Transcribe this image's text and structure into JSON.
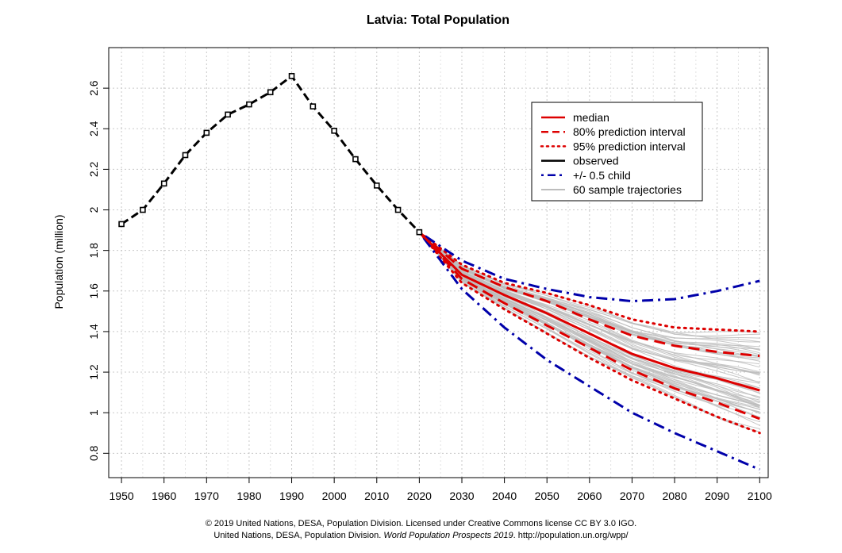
{
  "chart_data": {
    "type": "line",
    "title": "Latvia: Total Population",
    "xlabel": "",
    "ylabel": "Population (million)",
    "xlim": [
      1947,
      2102
    ],
    "ylim": [
      0.68,
      2.8
    ],
    "x_ticks": [
      1950,
      1960,
      1970,
      1980,
      1990,
      2000,
      2010,
      2020,
      2030,
      2040,
      2050,
      2060,
      2070,
      2080,
      2090,
      2100
    ],
    "y_ticks": [
      0.8,
      1.0,
      1.2,
      1.4,
      1.6,
      1.8,
      2.0,
      2.2,
      2.4,
      2.6
    ],
    "y_tick_labels": [
      "0.8",
      "1",
      "1.2",
      "1.4",
      "1.6",
      "1.8",
      "2",
      "2.2",
      "2.4",
      "2.6"
    ],
    "grid": true,
    "legend_position": "top-right",
    "legend": [
      "median",
      "80% prediction interval",
      "95% prediction interval",
      "observed",
      "+/- 0.5 child",
      "60 sample trajectories"
    ],
    "colors": {
      "median": "#dd0000",
      "interval": "#dd0000",
      "observed": "#000000",
      "child": "#0000aa",
      "trajectories": "#bdbdbd",
      "grid": "#c8c8c8"
    },
    "series": [
      {
        "name": "observed",
        "x": [
          1950,
          1955,
          1960,
          1965,
          1970,
          1975,
          1980,
          1985,
          1990,
          1995,
          2000,
          2005,
          2010,
          2015,
          2020
        ],
        "values": [
          1.93,
          2.0,
          2.13,
          2.27,
          2.38,
          2.47,
          2.52,
          2.58,
          2.66,
          2.51,
          2.39,
          2.25,
          2.12,
          2.0,
          1.89
        ]
      },
      {
        "name": "median",
        "x": [
          2020,
          2030,
          2040,
          2050,
          2060,
          2070,
          2080,
          2090,
          2100
        ],
        "values": [
          1.89,
          1.68,
          1.58,
          1.49,
          1.39,
          1.29,
          1.22,
          1.17,
          1.11
        ]
      },
      {
        "name": "80% upper",
        "x": [
          2020,
          2030,
          2040,
          2050,
          2060,
          2070,
          2080,
          2090,
          2100
        ],
        "values": [
          1.89,
          1.71,
          1.62,
          1.55,
          1.46,
          1.38,
          1.33,
          1.3,
          1.28
        ]
      },
      {
        "name": "80% lower",
        "x": [
          2020,
          2030,
          2040,
          2050,
          2060,
          2070,
          2080,
          2090,
          2100
        ],
        "values": [
          1.89,
          1.66,
          1.54,
          1.43,
          1.32,
          1.21,
          1.12,
          1.05,
          0.97
        ]
      },
      {
        "name": "95% upper",
        "x": [
          2020,
          2030,
          2040,
          2050,
          2060,
          2070,
          2080,
          2090,
          2100
        ],
        "values": [
          1.89,
          1.73,
          1.64,
          1.59,
          1.53,
          1.46,
          1.42,
          1.41,
          1.4
        ]
      },
      {
        "name": "95% lower",
        "x": [
          2020,
          2030,
          2040,
          2050,
          2060,
          2070,
          2080,
          2090,
          2100
        ],
        "values": [
          1.89,
          1.64,
          1.51,
          1.39,
          1.27,
          1.16,
          1.07,
          0.98,
          0.9
        ]
      },
      {
        "name": "+0.5 child",
        "x": [
          2020,
          2030,
          2040,
          2050,
          2060,
          2070,
          2080,
          2090,
          2100
        ],
        "values": [
          1.89,
          1.75,
          1.66,
          1.61,
          1.57,
          1.55,
          1.56,
          1.6,
          1.65
        ]
      },
      {
        "name": "-0.5 child",
        "x": [
          2020,
          2030,
          2040,
          2050,
          2060,
          2070,
          2080,
          2090,
          2100
        ],
        "values": [
          1.89,
          1.61,
          1.42,
          1.26,
          1.13,
          1.0,
          0.9,
          0.81,
          0.72
        ]
      }
    ],
    "trajectory_count": 60
  },
  "footer": {
    "line1": "© 2019 United Nations, DESA, Population Division. Licensed under Creative Commons license CC BY 3.0 IGO.",
    "line2_prefix": "United Nations, DESA, Population Division. ",
    "line2_italic": "World Population Prospects 2019",
    "line2_suffix": ". http://population.un.org/wpp/"
  }
}
